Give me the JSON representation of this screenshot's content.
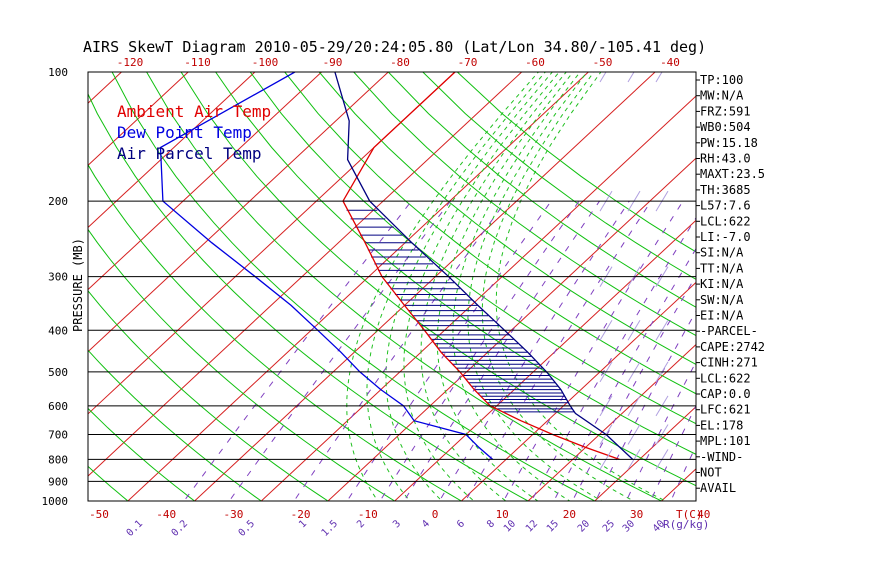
{
  "chart_data": {
    "type": "line",
    "title": "AIRS SkewT Diagram 2010-05-29/20:24:05.80 (Lat/Lon 34.80/-105.41 deg)",
    "ylabel": "PRESSURE (MB)",
    "xlabel_bottom": "T(C)",
    "mixing_ratio_unit": "R(g/kg)",
    "pressure_ticks": [
      100,
      200,
      300,
      400,
      500,
      600,
      700,
      800,
      900,
      1000
    ],
    "bottom_temp_ticks": [
      -50,
      -40,
      -30,
      -20,
      -10,
      0,
      10,
      20,
      30,
      40
    ],
    "top_temp_ticks": [
      -120,
      -110,
      -100,
      -90,
      -80,
      -70,
      -60,
      -50,
      -40
    ],
    "mixing_ratio_ticks": [
      "0.1",
      "0.2",
      "0.5",
      "1",
      "1.5",
      "2",
      "3",
      "4",
      "6",
      "8",
      "10",
      "12",
      "15",
      "20",
      "25",
      "30",
      "40"
    ],
    "legend": [
      {
        "label": "Ambient Air Temp",
        "color": "#e00000"
      },
      {
        "label": "Dew Point Temp",
        "color": "#0000e0"
      },
      {
        "label": "Air Parcel Temp",
        "color": "#000080"
      }
    ],
    "series": [
      {
        "name": "Ambient Air Temp",
        "color": "#e00000",
        "points": [
          [
            100,
            -70
          ],
          [
            150,
            -70
          ],
          [
            200,
            -66
          ],
          [
            250,
            -56
          ],
          [
            300,
            -48
          ],
          [
            350,
            -40
          ],
          [
            400,
            -33
          ],
          [
            450,
            -27
          ],
          [
            500,
            -21
          ],
          [
            550,
            -16
          ],
          [
            600,
            -11
          ],
          [
            650,
            -4
          ],
          [
            700,
            3
          ],
          [
            750,
            10
          ],
          [
            800,
            17
          ]
        ]
      },
      {
        "name": "Dew Point Temp",
        "color": "#0000e0",
        "points": [
          [
            100,
            -94
          ],
          [
            150,
            -102
          ],
          [
            200,
            -93
          ],
          [
            250,
            -79
          ],
          [
            300,
            -67
          ],
          [
            350,
            -57
          ],
          [
            400,
            -49
          ],
          [
            450,
            -42
          ],
          [
            500,
            -36
          ],
          [
            550,
            -30
          ],
          [
            600,
            -24
          ],
          [
            650,
            -20
          ],
          [
            700,
            -10
          ],
          [
            750,
            -6
          ],
          [
            800,
            -2
          ]
        ]
      },
      {
        "name": "Air Parcel Temp",
        "color": "#000080",
        "points": [
          [
            100,
            -88
          ],
          [
            130,
            -78
          ],
          [
            160,
            -72
          ],
          [
            200,
            -62
          ],
          [
            250,
            -49
          ],
          [
            300,
            -38
          ],
          [
            350,
            -29
          ],
          [
            400,
            -21
          ],
          [
            450,
            -14
          ],
          [
            500,
            -8
          ],
          [
            550,
            -3
          ],
          [
            600,
            1
          ],
          [
            625,
            3
          ],
          [
            700,
            11
          ],
          [
            800,
            19
          ]
        ]
      }
    ],
    "cape_hatch": {
      "from_mb": 200,
      "to_mb": 625,
      "spacing_mb": 10,
      "color": "#000080"
    },
    "dry_adiabats_C": [
      -60,
      -50,
      -40,
      -30,
      -20,
      -10,
      0,
      10,
      20,
      30,
      40,
      50,
      60,
      70,
      80,
      90,
      100,
      110,
      120
    ],
    "isotherms_C": [
      -150,
      -140,
      -130,
      -120,
      -110,
      -100,
      -90,
      -80,
      -70,
      -60,
      -50,
      -40,
      -30,
      -20,
      -10,
      0,
      10,
      20,
      30,
      40
    ],
    "mixing_ratio_gkg": [
      0.1,
      0.2,
      0.5,
      1,
      1.5,
      2,
      3,
      4,
      6,
      8,
      10,
      12,
      15,
      20,
      25,
      30,
      40
    ],
    "moist_adiabats_C": [
      -10,
      -5,
      0,
      5,
      10,
      15,
      20,
      25,
      30,
      35
    ],
    "wind_barbs_pressure_mb": [
      100,
      200,
      300,
      400,
      500,
      600,
      700,
      800
    ]
  },
  "indices": [
    "TP:100",
    "MW:N/A",
    "FRZ:591",
    "WB0:504",
    "PW:15.18",
    "RH:43.0",
    "MAXT:23.5",
    "TH:3685",
    "L57:7.6",
    "LCL:622",
    "LI:-7.0",
    "SI:N/A",
    "TT:N/A",
    "KI:N/A",
    "SW:N/A",
    "EI:N/A",
    "-PARCEL-",
    "CAPE:2742",
    "CINH:271",
    "LCL:622",
    "CAP:0.0",
    "LFC:621",
    "EL:178",
    "MPL:101",
    "-WIND-",
    "NOT",
    "AVAIL"
  ]
}
